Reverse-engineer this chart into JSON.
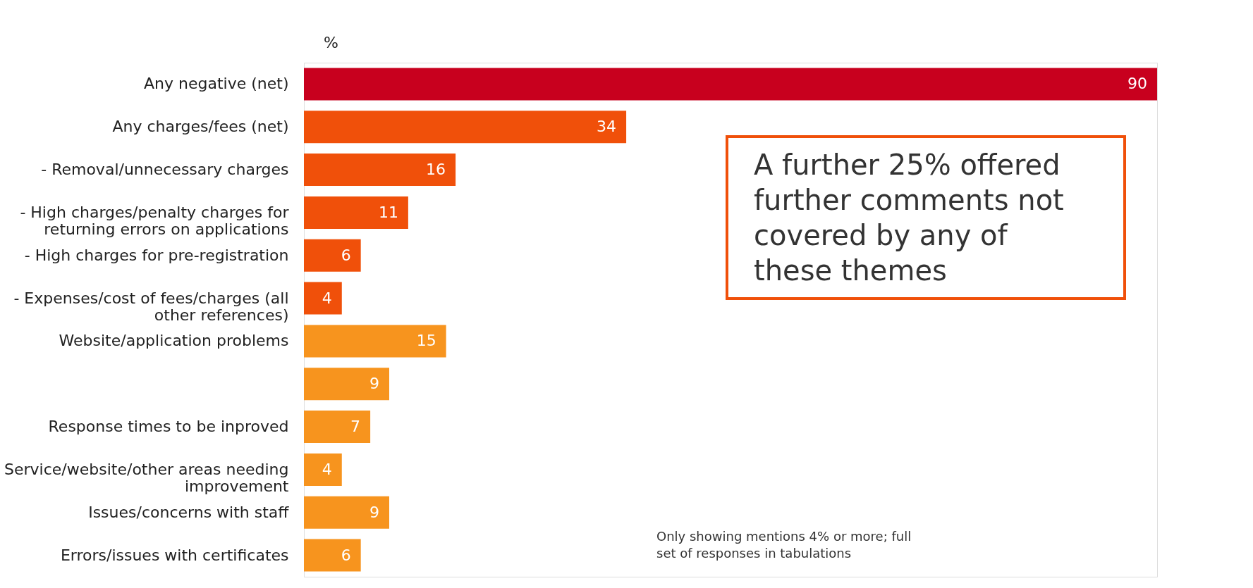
{
  "chart_data": {
    "type": "bar",
    "orientation": "horizontal",
    "xlabel": "%",
    "data_labels": true,
    "grid": false,
    "tick_labels": "y",
    "categories": [
      "Any negative (net)",
      "Any charges/fees (net)",
      "- Removal/unnecessary charges",
      "- High charges/penalty charges for returning errors on applications",
      "- High charges for pre-registration",
      "- Expenses/cost of fees/charges (all other references)",
      "Website/application problems",
      null,
      "Response times to be inproved",
      "Service/website/other areas needing improvement",
      "Issues/concerns with staff",
      "Errors/issues with certificates"
    ],
    "values": [
      90,
      34,
      16,
      11,
      6,
      4,
      15,
      9,
      7,
      4,
      9,
      6
    ],
    "colors": [
      "#c8001e",
      "#f0500a",
      "#f0500a",
      "#f0500a",
      "#f0500a",
      "#f0500a",
      "#f7941e",
      "#f7941e",
      "#f7941e",
      "#f7941e",
      "#f7941e",
      "#f7941e"
    ],
    "annotations": [
      "A further 25% offered further comments not covered by any of these themes",
      "Only showing mentions 4% or more; full set of responses in tabulations"
    ]
  }
}
